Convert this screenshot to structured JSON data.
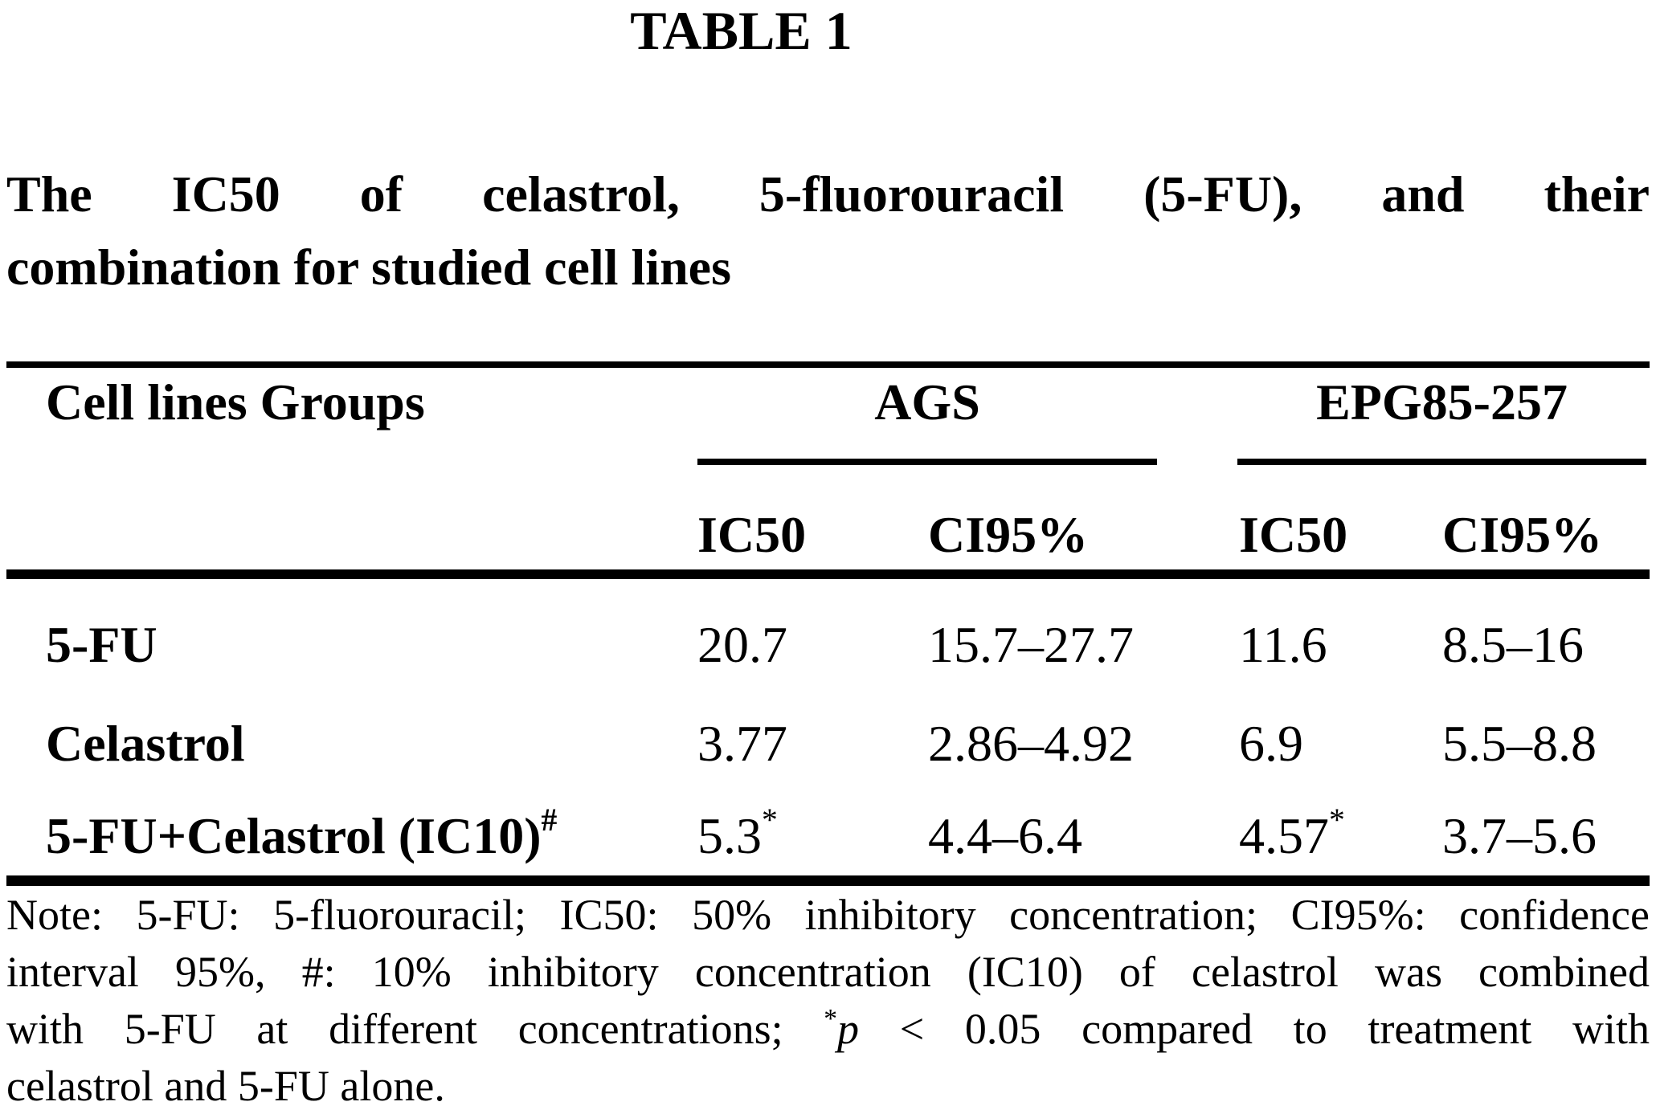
{
  "table_label": "TABLE 1",
  "title": {
    "line1": "The IC50 of celastrol, 5-fluorouracil (5-FU), and their",
    "line2": "combination for studied cell lines"
  },
  "table": {
    "corner_header": "Cell lines Groups",
    "group_headers": [
      {
        "label": "AGS"
      },
      {
        "label": "EPG85-257"
      }
    ],
    "sub_headers": [
      {
        "label": "IC50"
      },
      {
        "label": "CI95%"
      },
      {
        "label": "IC50"
      },
      {
        "label": "CI95%"
      }
    ],
    "rows": [
      {
        "label": "5-FU",
        "label_sup": "",
        "values": [
          {
            "text": "20.7",
            "sup": ""
          },
          {
            "text": "15.7–27.7",
            "sup": ""
          },
          {
            "text": "11.6",
            "sup": ""
          },
          {
            "text": "8.5–16",
            "sup": ""
          }
        ]
      },
      {
        "label": "Celastrol",
        "label_sup": "",
        "values": [
          {
            "text": "3.77",
            "sup": ""
          },
          {
            "text": "2.86–4.92",
            "sup": ""
          },
          {
            "text": "6.9",
            "sup": ""
          },
          {
            "text": "5.5–8.8",
            "sup": ""
          }
        ]
      },
      {
        "label": "5-FU+Celastrol (IC10)",
        "label_sup": "#",
        "values": [
          {
            "text": "5.3",
            "sup": "*"
          },
          {
            "text": "4.4–6.4",
            "sup": ""
          },
          {
            "text": "4.57",
            "sup": "*"
          },
          {
            "text": "3.7–5.6",
            "sup": ""
          }
        ]
      }
    ]
  },
  "note": {
    "line1": "Note: 5-FU: 5-fluorouracil; IC50: 50% inhibitory concentration; CI95%: confidence",
    "line2": "interval 95%, #: 10% inhibitory concentration (IC10) of celastrol was combined",
    "line3_pre": "with 5-FU at different concentrations; ",
    "line3_sup": "*",
    "line3_italic": "p",
    "line3_post": " < 0.05 compared to treatment with",
    "line4": "celastrol and 5-FU alone."
  },
  "colors": {
    "text": "#000000",
    "background": "#ffffff",
    "rule": "#000000"
  },
  "chart_data": {
    "type": "table",
    "title": "The IC50 of celastrol, 5-fluorouracil (5-FU), and their combination for studied cell lines",
    "column_groups": [
      "AGS",
      "EPG85-257"
    ],
    "columns": [
      "Cell lines Groups",
      "AGS IC50",
      "AGS CI95%",
      "EPG85-257 IC50",
      "EPG85-257 CI95%"
    ],
    "rows": [
      [
        "5-FU",
        "20.7",
        "15.7–27.7",
        "11.6",
        "8.5–16"
      ],
      [
        "Celastrol",
        "3.77",
        "2.86–4.92",
        "6.9",
        "5.5–8.8"
      ],
      [
        "5-FU+Celastrol (IC10)#",
        "5.3*",
        "4.4–6.4",
        "4.57*",
        "3.7–5.6"
      ]
    ]
  }
}
